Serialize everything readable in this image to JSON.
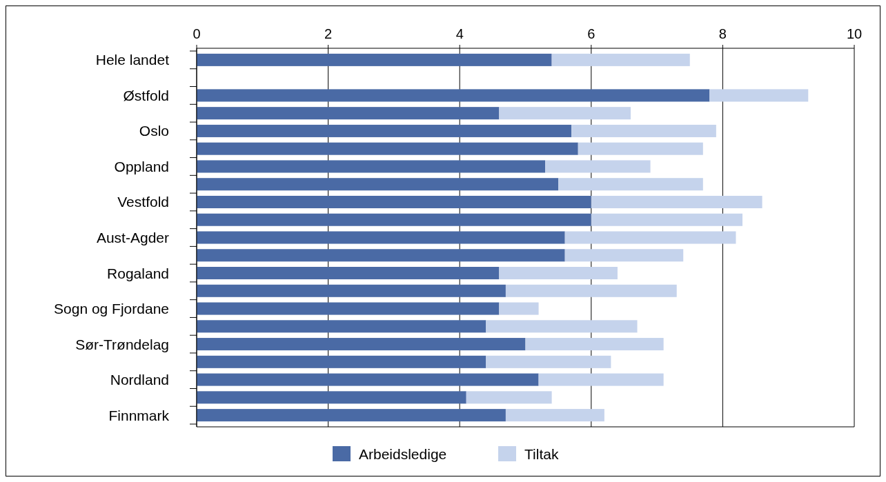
{
  "chart_data": {
    "type": "bar",
    "orientation": "horizontal",
    "stacked": true,
    "categories": [
      "Hele landet",
      null,
      "Østfold",
      null,
      "Oslo",
      null,
      "Oppland",
      null,
      "Vestfold",
      null,
      "Aust-Agder",
      null,
      "Rogaland",
      null,
      "Sogn og Fjordane",
      null,
      "Sør-Trøndelag",
      null,
      "Nordland",
      null,
      "Finnmark"
    ],
    "series": [
      {
        "name": "Arbeidsledige",
        "color": "#4a6aa5",
        "values": [
          5.4,
          null,
          7.8,
          4.6,
          5.7,
          5.8,
          5.3,
          5.5,
          6.0,
          6.0,
          5.6,
          5.6,
          4.6,
          4.7,
          4.6,
          4.4,
          5.0,
          4.4,
          5.2,
          4.1,
          4.7
        ]
      },
      {
        "name": "Tiltak",
        "color": "#c5d3ec",
        "values": [
          2.1,
          null,
          1.5,
          2.0,
          2.2,
          1.9,
          1.6,
          2.2,
          2.6,
          2.3,
          2.6,
          1.8,
          1.8,
          2.6,
          0.6,
          2.3,
          2.1,
          1.9,
          1.9,
          1.3,
          1.5
        ]
      }
    ],
    "xlim": [
      0,
      10
    ],
    "xticks": [
      0,
      2,
      4,
      6,
      8,
      10
    ],
    "grid": "x",
    "legend": "bottom"
  }
}
